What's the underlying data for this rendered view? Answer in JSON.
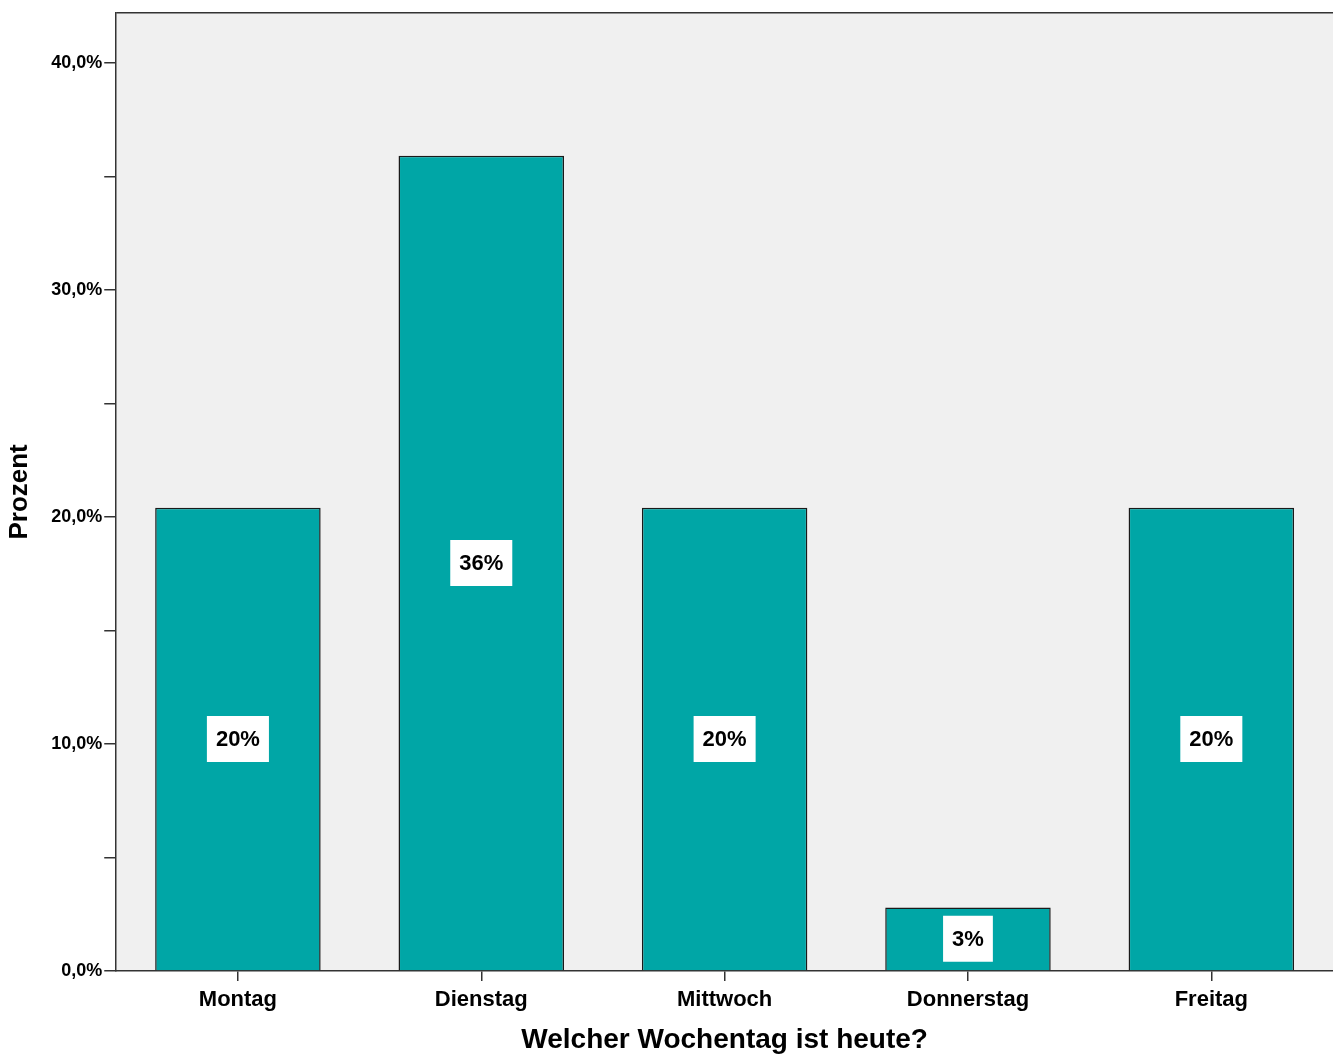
{
  "chart_data": {
    "type": "bar",
    "xlabel": "Welcher Wochentag ist heute?",
    "ylabel": "Prozent",
    "categories": [
      "Montag",
      "Dienstag",
      "Mittwoch",
      "Donnerstag",
      "Freitag"
    ],
    "values": [
      20.4,
      35.9,
      20.4,
      2.8,
      20.4
    ],
    "value_labels": [
      "20%",
      "36%",
      "20%",
      "3%",
      "20%"
    ],
    "color": "#00a6a6",
    "ylim": [
      0,
      42.2
    ],
    "yticks": [
      {
        "value": 0,
        "label": "0,0%"
      },
      {
        "value": 5,
        "label": null
      },
      {
        "value": 10,
        "label": "10,0%"
      },
      {
        "value": 15,
        "label": null
      },
      {
        "value": 20,
        "label": "20,0%"
      },
      {
        "value": 25,
        "label": null
      },
      {
        "value": 30,
        "label": "30,0%"
      },
      {
        "value": 35,
        "label": null
      },
      {
        "value": 40,
        "label": "40,0%"
      }
    ],
    "grid": false,
    "legend": false
  }
}
